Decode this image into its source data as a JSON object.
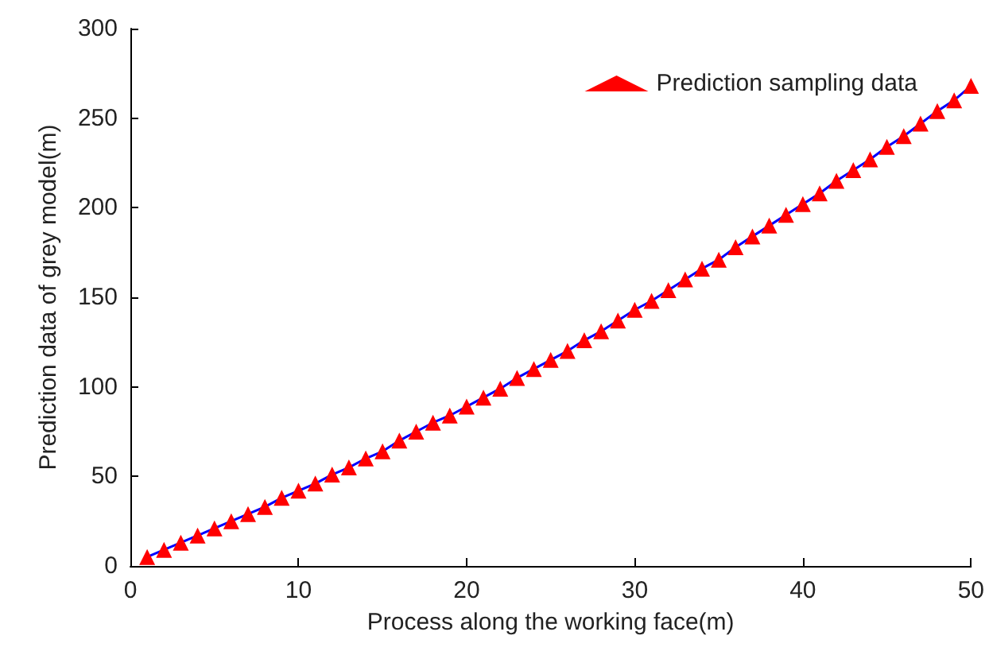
{
  "chart_data": {
    "type": "line",
    "xlabel": "Process along the working face(m)",
    "ylabel": "Prediction data of grey model(m)",
    "x": [
      1,
      2,
      3,
      4,
      5,
      6,
      7,
      8,
      9,
      10,
      11,
      12,
      13,
      14,
      15,
      16,
      17,
      18,
      19,
      20,
      21,
      22,
      23,
      24,
      25,
      26,
      27,
      28,
      29,
      30,
      31,
      32,
      33,
      34,
      35,
      36,
      37,
      38,
      39,
      40,
      41,
      42,
      43,
      44,
      45,
      46,
      47,
      48,
      49,
      50
    ],
    "series": [
      {
        "name": "Prediction sampling data",
        "color": "#0000ff",
        "values": [
          5,
          9,
          13,
          17,
          21,
          25,
          29,
          33,
          38,
          42,
          46,
          51,
          55,
          60,
          64,
          70,
          75,
          80,
          84,
          89,
          94,
          99,
          105,
          110,
          115,
          120,
          126,
          131,
          137,
          143,
          148,
          154,
          160,
          166,
          171,
          178,
          184,
          190,
          196,
          202,
          208,
          215,
          221,
          227,
          234,
          240,
          247,
          254,
          260,
          268
        ]
      }
    ],
    "xlim": [
      0,
      50
    ],
    "xticks": [
      0,
      10,
      20,
      30,
      40,
      50
    ],
    "ylim": [
      0,
      300
    ],
    "yticks": [
      0,
      50,
      100,
      150,
      200,
      250,
      300
    ],
    "marker": "triangle",
    "line_style": "solid",
    "grid": false,
    "legend": "top right"
  }
}
